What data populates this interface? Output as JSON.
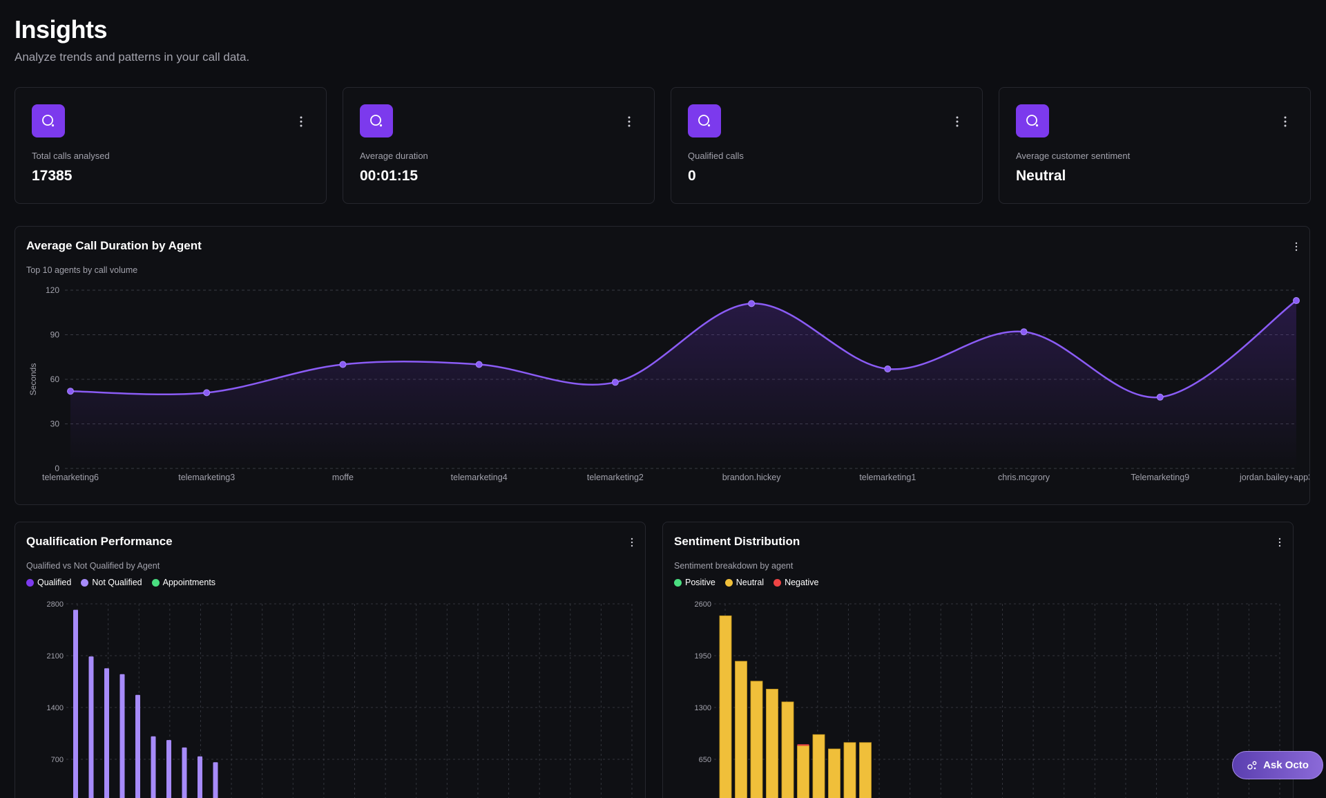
{
  "header": {
    "title": "Insights",
    "subtitle": "Analyze trends and patterns in your call data."
  },
  "stats": [
    {
      "label": "Total calls analysed",
      "value": "17385",
      "icon": "search-icon"
    },
    {
      "label": "Average duration",
      "value": "00:01:15",
      "icon": "search-icon"
    },
    {
      "label": "Qualified calls",
      "value": "0",
      "icon": "search-icon"
    },
    {
      "label": "Average customer sentiment",
      "value": "Neutral",
      "icon": "search-icon"
    }
  ],
  "colors": {
    "accent": "#7c3aed",
    "line": "#8b5cf6",
    "qualified": "#7c3aed",
    "not_qualified": "#a78bfa",
    "appointments": "#4ade80",
    "positive": "#4ade80",
    "neutral": "#f0bf3a",
    "negative": "#ef4444"
  },
  "duration_panel": {
    "title": "Average Call Duration by Agent",
    "subtitle": "Top 10 agents by call volume"
  },
  "qualification_panel": {
    "title": "Qualification Performance",
    "subtitle": "Qualified vs Not Qualified by Agent",
    "legend": [
      "Qualified",
      "Not Qualified",
      "Appointments"
    ]
  },
  "sentiment_panel": {
    "title": "Sentiment Distribution",
    "subtitle": "Sentiment breakdown by agent",
    "legend": [
      "Positive",
      "Neutral",
      "Negative"
    ]
  },
  "ask_button": {
    "label": "Ask Octo"
  },
  "chart_data": [
    {
      "type": "area",
      "title": "Average Call Duration by Agent",
      "ylabel": "Seconds",
      "categories": [
        "telemarketing6",
        "telemarketing3",
        "moffe",
        "telemarketing4",
        "telemarketing2",
        "brandon.hickey",
        "telemarketing1",
        "chris.mcgrory",
        "Telemarketing9",
        "jordan.bailey+app3"
      ],
      "values": [
        52,
        51,
        70,
        70,
        58,
        111,
        67,
        92,
        48,
        113
      ],
      "ylim": [
        0,
        120
      ],
      "yticks": [
        0,
        30,
        60,
        90,
        120
      ],
      "grid": true
    },
    {
      "type": "bar",
      "title": "Qualification Performance",
      "yticks": [
        700,
        1400,
        2100,
        2800
      ],
      "ylim": [
        0,
        2800
      ],
      "series": [
        {
          "name": "Not Qualified",
          "values": [
            2720,
            2090,
            1930,
            1850,
            1570,
            1010,
            960,
            860,
            740,
            660
          ]
        }
      ],
      "grid": true
    },
    {
      "type": "bar",
      "title": "Sentiment Distribution",
      "yticks": [
        650,
        1300,
        1950,
        2600
      ],
      "ylim": [
        0,
        2600
      ],
      "series": [
        {
          "name": "Neutral",
          "values": [
            2450,
            1880,
            1630,
            1530,
            1370,
            820,
            960,
            780,
            860,
            860
          ]
        },
        {
          "name": "Negative",
          "values": [
            0,
            0,
            0,
            0,
            0,
            18,
            0,
            0,
            0,
            0
          ]
        }
      ],
      "grid": true
    }
  ]
}
